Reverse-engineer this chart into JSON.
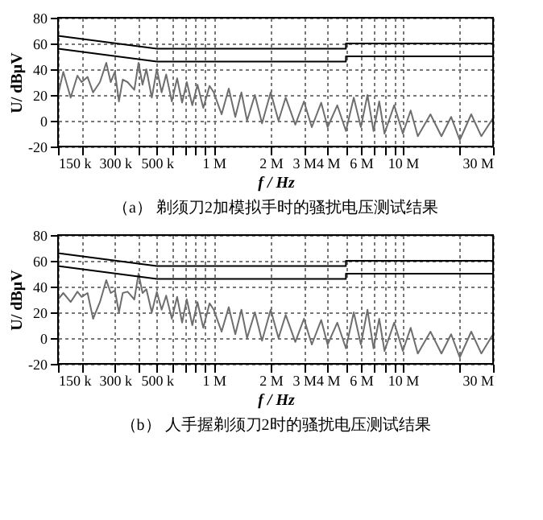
{
  "chart_data": [
    {
      "type": "line",
      "title": "（a） 剃须刀2加模拟手时的骚扰电压测试结果",
      "xlabel": "f / Hz",
      "ylabel": "U/ dBμV",
      "log": "x",
      "grid": true,
      "marker": "none",
      "line_style": "solid",
      "xlim": [
        150000,
        30000000
      ],
      "ylim": [
        -20,
        80
      ],
      "yticks": [
        -20,
        0,
        20,
        40,
        60,
        80
      ],
      "xticks": [
        {
          "value": 150000,
          "label": "150 k"
        },
        {
          "value": 200000,
          "label": null
        },
        {
          "value": 300000,
          "label": "300 k"
        },
        {
          "value": 400000,
          "label": null
        },
        {
          "value": 500000,
          "label": "500 k"
        },
        {
          "value": 600000,
          "label": null
        },
        {
          "value": 700000,
          "label": null
        },
        {
          "value": 800000,
          "label": null
        },
        {
          "value": 900000,
          "label": null
        },
        {
          "value": 1000000,
          "label": "1 M"
        },
        {
          "value": 2000000,
          "label": "2 M"
        },
        {
          "value": 3000000,
          "label": "3 M"
        },
        {
          "value": 4000000,
          "label": "4 M"
        },
        {
          "value": 5000000,
          "label": null
        },
        {
          "value": 6000000,
          "label": "6 M"
        },
        {
          "value": 7000000,
          "label": null
        },
        {
          "value": 8000000,
          "label": null
        },
        {
          "value": 9000000,
          "label": null
        },
        {
          "value": 10000000,
          "label": "10 M"
        },
        {
          "value": 20000000,
          "label": null
        },
        {
          "value": 30000000,
          "label": "30 M"
        }
      ],
      "series": [
        {
          "color": "#6e6e6e",
          "x": [
            150000,
            160000,
            175000,
            190000,
            200000,
            215000,
            230000,
            250000,
            270000,
            285000,
            300000,
            315000,
            330000,
            350000,
            380000,
            400000,
            420000,
            440000,
            470000,
            500000,
            530000,
            560000,
            600000,
            640000,
            680000,
            720000,
            770000,
            820000,
            880000,
            950000,
            1000000,
            1100000,
            1200000,
            1300000,
            1400000,
            1500000,
            1650000,
            1800000,
            2000000,
            2200000,
            2400000,
            2700000,
            3000000,
            3300000,
            3700000,
            4000000,
            4500000,
            5000000,
            5500000,
            6000000,
            6500000,
            7000000,
            7500000,
            8000000,
            9000000,
            10000000,
            11000000,
            12000000,
            14000000,
            16000000,
            18000000,
            20000000,
            23000000,
            26000000,
            30000000
          ],
          "values": [
            20,
            38,
            18,
            35,
            30,
            34,
            22,
            30,
            45,
            30,
            38,
            15,
            32,
            30,
            24,
            45,
            28,
            40,
            18,
            40,
            22,
            36,
            15,
            33,
            14,
            30,
            12,
            28,
            10,
            27,
            22,
            5,
            25,
            3,
            22,
            0,
            20,
            -2,
            22,
            0,
            18,
            -3,
            15,
            -5,
            14,
            -5,
            12,
            -8,
            18,
            -5,
            20,
            -8,
            15,
            -10,
            12,
            -10,
            8,
            -12,
            5,
            -12,
            3,
            -15,
            5,
            -12,
            2
          ]
        },
        {
          "color": "#000000",
          "x": [
            150000,
            500000,
            5000000,
            5000000,
            30000000
          ],
          "values": [
            66,
            56,
            56,
            60,
            60
          ]
        },
        {
          "color": "#000000",
          "x": [
            150000,
            500000,
            5000000,
            5000000,
            30000000
          ],
          "values": [
            56,
            46,
            46,
            50,
            50
          ]
        }
      ]
    },
    {
      "type": "line",
      "title": "（b） 人手握剃须刀2时的骚扰电压测试结果",
      "xlabel": "f / Hz",
      "ylabel": "U/ dBμV",
      "log": "x",
      "grid": true,
      "marker": "none",
      "line_style": "solid",
      "xlim": [
        150000,
        30000000
      ],
      "ylim": [
        -20,
        80
      ],
      "yticks": [
        -20,
        0,
        20,
        40,
        60,
        80
      ],
      "xticks": [
        {
          "value": 150000,
          "label": "150 k"
        },
        {
          "value": 200000,
          "label": null
        },
        {
          "value": 300000,
          "label": "300 k"
        },
        {
          "value": 400000,
          "label": null
        },
        {
          "value": 500000,
          "label": "500 k"
        },
        {
          "value": 600000,
          "label": null
        },
        {
          "value": 700000,
          "label": null
        },
        {
          "value": 800000,
          "label": null
        },
        {
          "value": 900000,
          "label": null
        },
        {
          "value": 1000000,
          "label": "1 M"
        },
        {
          "value": 2000000,
          "label": "2 M"
        },
        {
          "value": 3000000,
          "label": "3 M"
        },
        {
          "value": 4000000,
          "label": "4 M"
        },
        {
          "value": 5000000,
          "label": null
        },
        {
          "value": 6000000,
          "label": "6 M"
        },
        {
          "value": 7000000,
          "label": null
        },
        {
          "value": 8000000,
          "label": null
        },
        {
          "value": 9000000,
          "label": null
        },
        {
          "value": 10000000,
          "label": "10 M"
        },
        {
          "value": 20000000,
          "label": null
        },
        {
          "value": 30000000,
          "label": "30 M"
        }
      ],
      "series": [
        {
          "color": "#6e6e6e",
          "x": [
            150000,
            160000,
            175000,
            190000,
            200000,
            215000,
            230000,
            250000,
            270000,
            285000,
            300000,
            315000,
            330000,
            350000,
            380000,
            400000,
            420000,
            440000,
            470000,
            500000,
            530000,
            560000,
            600000,
            640000,
            680000,
            720000,
            770000,
            820000,
            880000,
            950000,
            1000000,
            1100000,
            1200000,
            1300000,
            1400000,
            1500000,
            1650000,
            1800000,
            2000000,
            2200000,
            2400000,
            2700000,
            3000000,
            3300000,
            3700000,
            4000000,
            4500000,
            5000000,
            5500000,
            6000000,
            6500000,
            7000000,
            7500000,
            8000000,
            9000000,
            10000000,
            11000000,
            12000000,
            14000000,
            16000000,
            18000000,
            20000000,
            23000000,
            26000000,
            30000000
          ],
          "values": [
            30,
            35,
            28,
            36,
            32,
            35,
            15,
            28,
            45,
            35,
            37,
            20,
            35,
            36,
            30,
            50,
            35,
            38,
            20,
            36,
            22,
            33,
            15,
            32,
            12,
            30,
            10,
            28,
            8,
            27,
            22,
            5,
            24,
            3,
            22,
            0,
            20,
            -2,
            22,
            0,
            18,
            -3,
            15,
            -5,
            14,
            -5,
            12,
            -8,
            20,
            -5,
            22,
            -8,
            15,
            -10,
            12,
            -10,
            8,
            -12,
            5,
            -12,
            3,
            -15,
            5,
            -12,
            3
          ]
        },
        {
          "color": "#000000",
          "x": [
            150000,
            500000,
            5000000,
            5000000,
            30000000
          ],
          "values": [
            66,
            56,
            56,
            60,
            60
          ]
        },
        {
          "color": "#000000",
          "x": [
            150000,
            500000,
            5000000,
            5000000,
            30000000
          ],
          "values": [
            56,
            46,
            46,
            50,
            50
          ]
        }
      ]
    }
  ]
}
